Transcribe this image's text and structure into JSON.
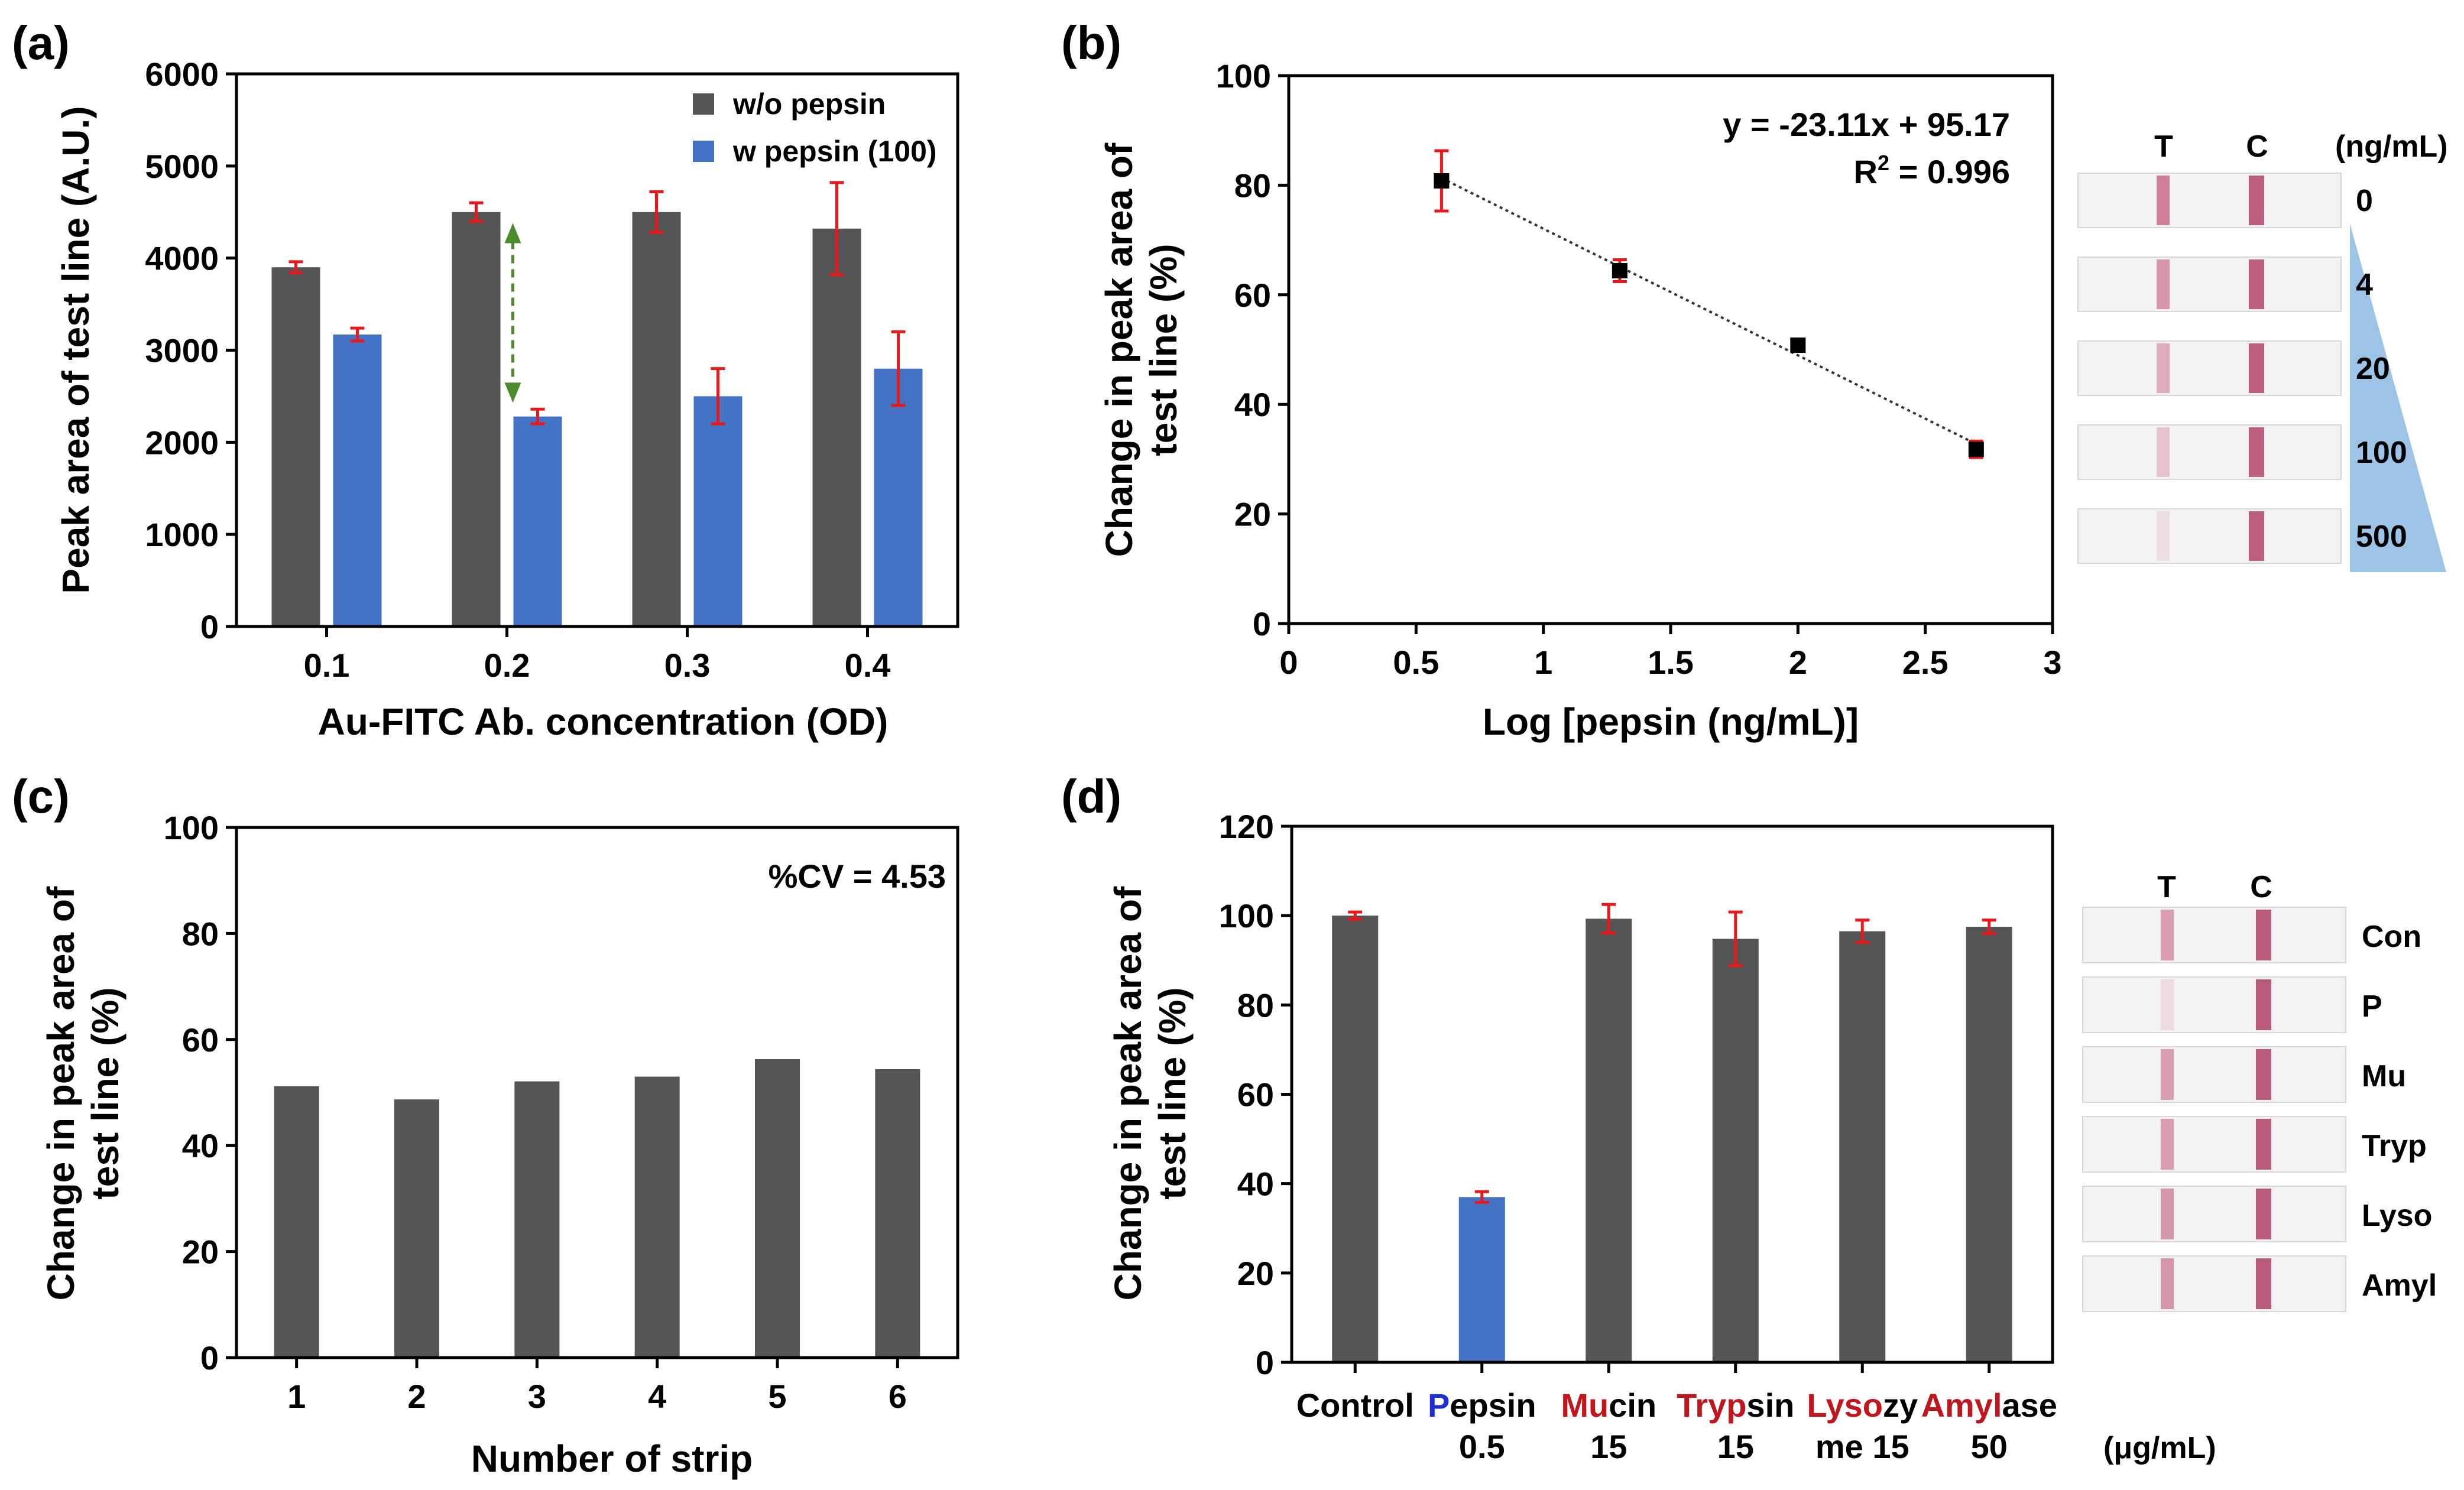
{
  "figure": {
    "colors": {
      "dark": "#555555",
      "blue": "#4472C4",
      "err": "#E8191B",
      "green": "#4A8B2C",
      "accentRed": "#C0161D",
      "accentBlue": "#1F2FD6",
      "wedge": "#9DC3E6"
    }
  },
  "chart_data": [
    {
      "panel": "(a)",
      "type": "bar",
      "categories": [
        "0.1",
        "0.2",
        "0.3",
        "0.4"
      ],
      "series": [
        {
          "name": "w/o pepsin",
          "values": [
            3900,
            4500,
            4500,
            4320
          ],
          "errors": [
            60,
            100,
            220,
            500
          ]
        },
        {
          "name": "w pepsin (100)",
          "values": [
            3170,
            2280,
            2500,
            2800
          ],
          "errors": [
            70,
            80,
            300,
            400
          ]
        }
      ],
      "title": "",
      "xlabel": "Au-FITC Ab. concentration (OD)",
      "ylabel": "Peak area of test line (A.U.)",
      "ylim": [
        0,
        6000
      ],
      "yticks": [
        "0",
        "1000",
        "2000",
        "3000",
        "4000",
        "5000",
        "6000"
      ],
      "legend": "top-right",
      "annotation": "double-arrow between bars at 0.2"
    },
    {
      "panel": "(b)",
      "type": "scatter",
      "x": [
        0.6,
        1.3,
        2.0,
        2.7
      ],
      "y": [
        80.8,
        64.4,
        50.8,
        31.8
      ],
      "errors": [
        5.5,
        2.0,
        1.0,
        1.5
      ],
      "fit": {
        "slope": -23.11,
        "intercept": 95.17
      },
      "title": "",
      "equation": "y = -23.11x + 95.17",
      "r2_prefix": "R",
      "r2_sup": "2",
      "r2_value": " = 0.996",
      "xlabel": "Log [pepsin (ng/mL)]",
      "ylabel_line1": "Change in peak area of",
      "ylabel_line2": "test line (%)",
      "xlim": [
        0,
        3
      ],
      "ylim": [
        0,
        100
      ],
      "xticks": [
        "0",
        "0.5",
        "1",
        "1.5",
        "2",
        "2.5",
        "3"
      ],
      "yticks": [
        "0",
        "20",
        "40",
        "60",
        "80",
        "100"
      ],
      "strips": {
        "t_label": "T",
        "c_label": "C",
        "unit": "(ng/mL)",
        "labels": [
          "0",
          "4",
          "20",
          "100",
          "500"
        ],
        "t_intensity": [
          0.75,
          0.6,
          0.45,
          0.3,
          0.12
        ]
      }
    },
    {
      "panel": "(c)",
      "type": "bar",
      "categories": [
        "1",
        "2",
        "3",
        "4",
        "5",
        "6"
      ],
      "values": [
        51.2,
        48.7,
        52.1,
        53.0,
        56.3,
        54.4
      ],
      "title": "",
      "annotation": "%CV = 4.53",
      "xlabel": "Number of strip",
      "ylabel_line1": "Change in peak area of",
      "ylabel_line2": "test line (%)",
      "ylim": [
        0,
        100
      ],
      "yticks": [
        "0",
        "20",
        "40",
        "60",
        "80",
        "100"
      ]
    },
    {
      "panel": "(d)",
      "type": "bar",
      "categories": [
        {
          "line1": [
            {
              "t": "Control",
              "c": "black"
            }
          ],
          "line2": ""
        },
        {
          "line1": [
            {
              "t": "P",
              "c": "blue"
            },
            {
              "t": "epsin",
              "c": "black"
            }
          ],
          "line2": "0.5"
        },
        {
          "line1": [
            {
              "t": "Mu",
              "c": "red"
            },
            {
              "t": "cin",
              "c": "black"
            }
          ],
          "line2": "15"
        },
        {
          "line1": [
            {
              "t": "Tryp",
              "c": "red"
            },
            {
              "t": "sin",
              "c": "black"
            }
          ],
          "line2": "15"
        },
        {
          "line1": [
            {
              "t": "Lyso",
              "c": "red"
            },
            {
              "t": "zy",
              "c": "black"
            }
          ],
          "line2": "me 15"
        },
        {
          "line1": [
            {
              "t": "Amyl",
              "c": "red"
            },
            {
              "t": "ase",
              "c": "black"
            }
          ],
          "line2": "50"
        }
      ],
      "values": [
        100,
        37,
        99.3,
        94.8,
        96.5,
        97.5
      ],
      "errors": [
        0.8,
        1.2,
        3.2,
        6.0,
        2.5,
        1.5
      ],
      "highlight_index": 1,
      "unit_label": "(μg/mL)",
      "title": "",
      "xlabel": "",
      "ylabel_line1": "Change in peak area of",
      "ylabel_line2": "test line (%)",
      "ylim": [
        0,
        120
      ],
      "yticks": [
        "0",
        "20",
        "40",
        "60",
        "80",
        "100",
        "120"
      ],
      "strips": {
        "t_label": "T",
        "c_label": "C",
        "labels": [
          "Con",
          "P",
          "Mu",
          "Tryp",
          "Lyso",
          "Amyl"
        ],
        "t_intensity": [
          0.55,
          0.15,
          0.55,
          0.55,
          0.6,
          0.6
        ]
      }
    }
  ]
}
